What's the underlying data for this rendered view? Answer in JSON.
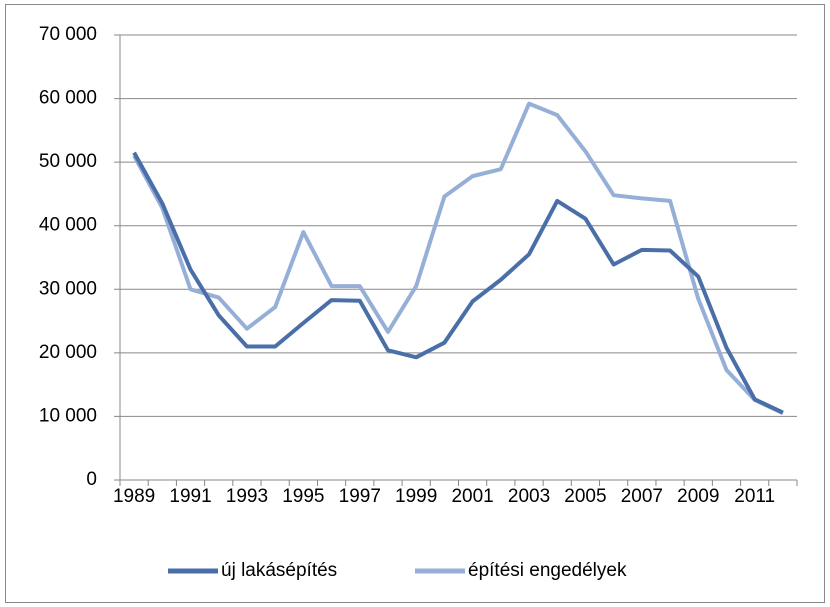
{
  "chart_data": {
    "type": "line",
    "categories": [
      "1989",
      null,
      "1991",
      null,
      "1993",
      null,
      "1995",
      null,
      "1997",
      null,
      "1999",
      null,
      "2001",
      null,
      "2003",
      null,
      "2005",
      null,
      "2007",
      null,
      "2009",
      null,
      "2011",
      null
    ],
    "series": [
      {
        "name": "új lakásépítés",
        "color": "#4a6fa8",
        "values": [
          51500,
          43500,
          33100,
          25900,
          21000,
          21000,
          24700,
          28300,
          28200,
          20400,
          19300,
          21600,
          28100,
          31500,
          35500,
          43900,
          41100,
          33900,
          36200,
          36100,
          32000,
          20800,
          12700,
          10600
        ]
      },
      {
        "name": "építési engedélyek",
        "color": "#95afd7",
        "values": [
          51000,
          42800,
          30000,
          28700,
          23800,
          27200,
          39000,
          30500,
          30500,
          23300,
          30500,
          44600,
          47800,
          48900,
          59200,
          57400,
          51700,
          44800,
          44300,
          43900,
          28500,
          17300,
          12600,
          10500
        ]
      }
    ],
    "ylim": [
      0,
      70000
    ],
    "yticks": [
      {
        "value": 0,
        "label": "0"
      },
      {
        "value": 10000,
        "label": "10 000"
      },
      {
        "value": 20000,
        "label": "20 000"
      },
      {
        "value": 30000,
        "label": "30 000"
      },
      {
        "value": 40000,
        "label": "40 000"
      },
      {
        "value": 50000,
        "label": "50 000"
      },
      {
        "value": 60000,
        "label": "60 000"
      },
      {
        "value": 70000,
        "label": "70 000"
      }
    ],
    "grid": true,
    "legend": "bottom"
  }
}
